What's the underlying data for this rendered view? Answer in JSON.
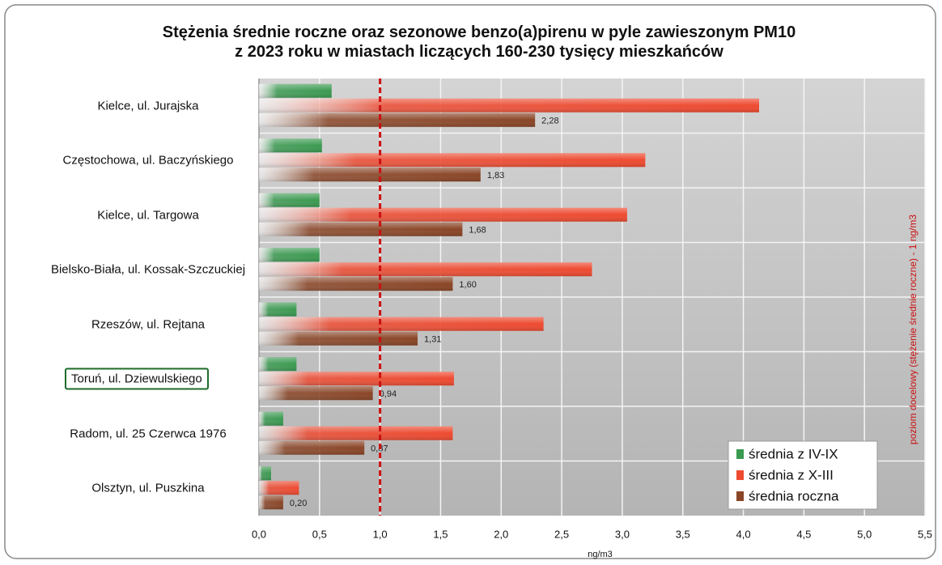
{
  "chart_data": {
    "type": "bar",
    "orientation": "horizontal",
    "title": [
      "Stężenia średnie roczne oraz sezonowe benzo(a)pirenu w pyle zawieszonym PM10",
      "z 2023 roku w miastach liczących 160-230 tysięcy mieszkańców"
    ],
    "categories": [
      "Kielce, ul. Jurajska",
      "Częstochowa, ul. Baczyńskiego",
      "Kielce, ul. Targowa",
      "Bielsko-Biała, ul. Kossak-Szczuckiej",
      "Rzeszów, ul. Rejtana",
      "Toruń, ul. Dziewulskiego",
      "Radom, ul. 25 Czerwca 1976",
      "Olsztyn, ul. Puszkina"
    ],
    "series": [
      {
        "name": "średnia z IV-IX",
        "color": "#3a9a50",
        "values": [
          0.6,
          0.52,
          0.5,
          0.5,
          0.31,
          0.31,
          0.2,
          0.1
        ]
      },
      {
        "name": "średnia z X-III",
        "color": "#ee4a30",
        "values": [
          4.13,
          3.19,
          3.04,
          2.75,
          2.35,
          1.61,
          1.6,
          0.33
        ]
      },
      {
        "name": "średnia roczna",
        "color": "#8a4526",
        "values": [
          2.28,
          1.83,
          1.68,
          1.6,
          1.31,
          0.94,
          0.87,
          0.2
        ],
        "value_labels": [
          "2,28",
          "1,83",
          "1,68",
          "1,60",
          "1,31",
          "0,94",
          "0,87",
          "0,20"
        ]
      }
    ],
    "xlim": [
      0,
      5.5
    ],
    "xticks": [
      {
        "value": 0,
        "label": "0,0"
      },
      {
        "value": 0.5,
        "label": "0,5"
      },
      {
        "value": 1,
        "label": "1,0"
      },
      {
        "value": 1.5,
        "label": "1,5"
      },
      {
        "value": 2,
        "label": "2,0"
      },
      {
        "value": 2.5,
        "label": "2,5"
      },
      {
        "value": 3,
        "label": "3,0"
      },
      {
        "value": 3.5,
        "label": "3,5"
      },
      {
        "value": 4,
        "label": "4,0"
      },
      {
        "value": 4.5,
        "label": "4,5"
      },
      {
        "value": 5,
        "label": "5,0"
      },
      {
        "value": 5.5,
        "label": "5,5"
      }
    ],
    "xlabel": "ng/m3",
    "grid": true,
    "legend": "lower right",
    "target_line": {
      "value": 1,
      "label": "poziom docelowy (stężenie średnie roczne) - 1 ng/m3",
      "color": "#cc1010"
    },
    "highlighted_category": 5
  }
}
